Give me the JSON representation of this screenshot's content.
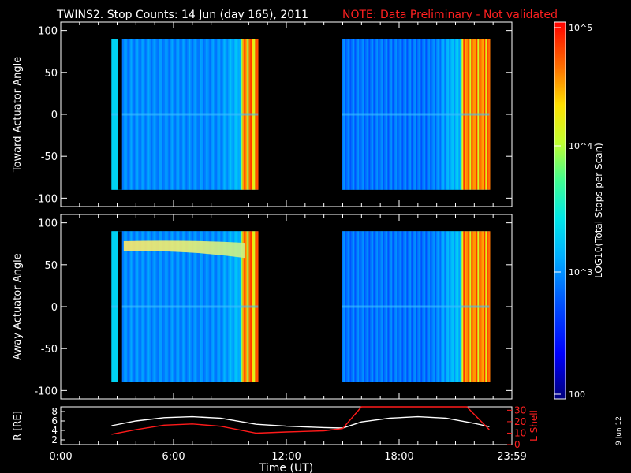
{
  "title": "TWINS2. Stop Counts: 14 Jun (day 165), 2011",
  "note": "NOTE: Data Preliminary - Not validated",
  "stamp": "9 Jun 12",
  "xlabel": "Time (UT)",
  "colorbar": {
    "label": "LOG10(Total Stops per Scan)",
    "ticks": [
      "10^5",
      "10^4",
      "10^3",
      "100"
    ]
  },
  "chart_data": [
    {
      "type": "heatmap",
      "ylabel": "Toward Actuator Angle",
      "yticks": [
        "100",
        "50",
        "0",
        "-50",
        "-100"
      ],
      "ylim": [
        -110,
        110
      ],
      "xlim": [
        0,
        24
      ],
      "data_angle_range": [
        -90,
        90
      ],
      "data_segments_hours": [
        [
          2.7,
          10.5
        ],
        [
          14.95,
          22.8
        ]
      ]
    },
    {
      "type": "heatmap",
      "ylabel": "Away Actuator Angle",
      "yticks": [
        "100",
        "50",
        "0",
        "-50",
        "-100"
      ],
      "ylim": [
        -110,
        110
      ],
      "xlim": [
        0,
        24
      ],
      "data_angle_range": [
        -90,
        90
      ],
      "data_segments_hours": [
        [
          2.7,
          10.5
        ],
        [
          14.95,
          22.8
        ]
      ]
    },
    {
      "type": "line",
      "ylabel_left": "R [RE]",
      "ylabel_right": "L Shell",
      "yticks_left": [
        "8",
        "6",
        "4",
        "2"
      ],
      "yticks_right": [
        "30",
        "20",
        "10",
        "0"
      ],
      "ylim_left": [
        1,
        9
      ],
      "ylim_right": [
        0,
        33
      ],
      "xticks": [
        "0:00",
        "6:00",
        "12:00",
        "18:00",
        "23:59"
      ],
      "series": [
        {
          "name": "R",
          "color": "#ffffff",
          "x": [
            2.7,
            4.0,
            5.5,
            7.0,
            8.5,
            10.4,
            12.0,
            14.0,
            15.0,
            16.0,
            17.5,
            19.0,
            20.5,
            22.0,
            22.8
          ],
          "y": [
            5.0,
            6.0,
            6.7,
            6.9,
            6.6,
            5.3,
            4.9,
            4.6,
            4.5,
            5.8,
            6.6,
            6.9,
            6.6,
            5.5,
            4.8
          ]
        },
        {
          "name": "L Shell",
          "color": "#ff1a1a",
          "x": [
            2.7,
            4.0,
            5.5,
            7.0,
            8.5,
            10.4,
            12.0,
            14.0,
            15.0,
            16.0,
            21.6,
            22.8
          ],
          "y": [
            9,
            13,
            17,
            18,
            16,
            10,
            11,
            12,
            14,
            33,
            33,
            13
          ]
        }
      ]
    }
  ]
}
